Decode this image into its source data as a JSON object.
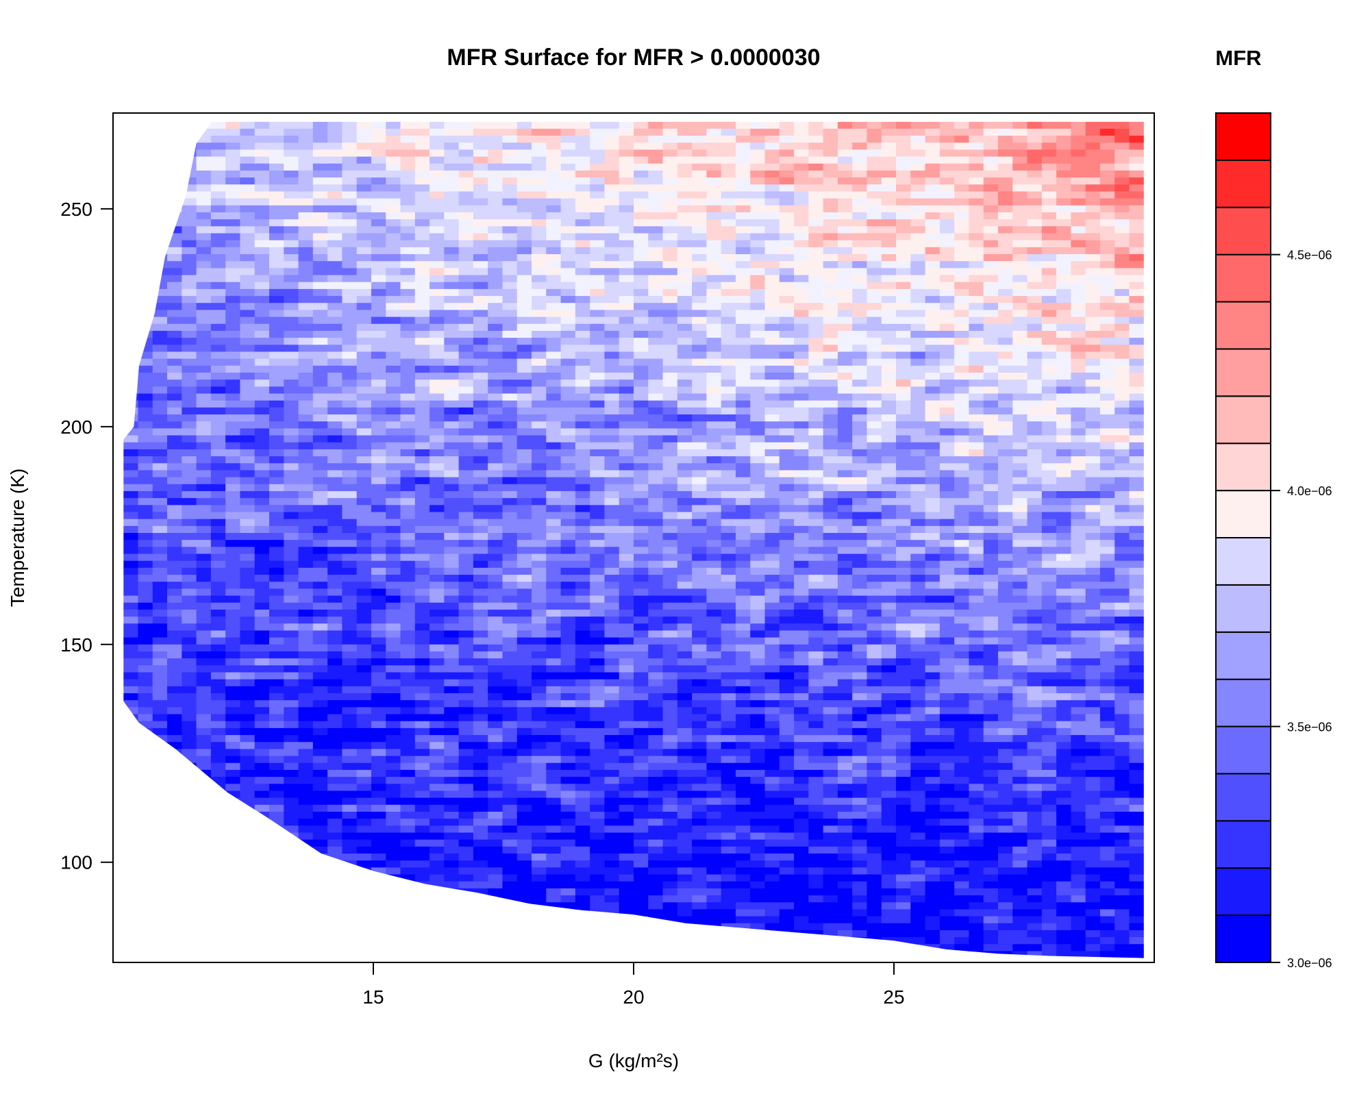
{
  "chart_data": {
    "type": "heatmap",
    "title": "MFR Surface for MFR > 0.0000030",
    "xlabel": "G (kg/m²s)",
    "ylabel": "Temperature (K)",
    "xlim": [
      10,
      30
    ],
    "ylim": [
      77,
      272
    ],
    "x_ticks": [
      15,
      20,
      25
    ],
    "y_ticks": [
      100,
      150,
      200,
      250
    ],
    "x_tick_labels": [
      "15",
      "20",
      "25"
    ],
    "y_tick_labels": [
      "100",
      "150",
      "200",
      "250"
    ],
    "data_extent": {
      "x": [
        10.2,
        29.8
      ],
      "y": [
        78,
        270
      ]
    },
    "lower_boundary": [
      {
        "g": 10.2,
        "t": 137
      },
      {
        "g": 10.5,
        "t": 132
      },
      {
        "g": 11.2,
        "t": 126
      },
      {
        "g": 12.2,
        "t": 116
      },
      {
        "g": 13.0,
        "t": 110
      },
      {
        "g": 14.0,
        "t": 102
      },
      {
        "g": 15.0,
        "t": 98
      },
      {
        "g": 16.0,
        "t": 95
      },
      {
        "g": 17.0,
        "t": 93
      },
      {
        "g": 18.0,
        "t": 90.5
      },
      {
        "g": 19.0,
        "t": 89
      },
      {
        "g": 20.0,
        "t": 88
      },
      {
        "g": 21.0,
        "t": 86
      },
      {
        "g": 22.0,
        "t": 85
      },
      {
        "g": 23.0,
        "t": 84
      },
      {
        "g": 24.0,
        "t": 83
      },
      {
        "g": 25.0,
        "t": 82
      },
      {
        "g": 26.0,
        "t": 80
      },
      {
        "g": 27.0,
        "t": 79
      },
      {
        "g": 28.0,
        "t": 78.5
      },
      {
        "g": 29.8,
        "t": 78
      }
    ],
    "upper_left_boundary": [
      {
        "g": 10.2,
        "t": 197
      },
      {
        "g": 10.4,
        "t": 200
      },
      {
        "g": 10.5,
        "t": 214
      },
      {
        "g": 10.8,
        "t": 226
      },
      {
        "g": 11.0,
        "t": 239
      },
      {
        "g": 11.4,
        "t": 253
      },
      {
        "g": 11.6,
        "t": 265
      },
      {
        "g": 11.9,
        "t": 270
      }
    ],
    "colorbar": {
      "title": "MFR",
      "range": [
        3e-06,
        4.8e-06
      ],
      "levels": 18,
      "colors": [
        "#0000ff",
        "#1a1aff",
        "#3535ff",
        "#5050ff",
        "#6b6bff",
        "#8686ff",
        "#a1a1ff",
        "#bcbcff",
        "#d7d7ff",
        "#f2f2ff",
        "#fff0f0",
        "#ffd5d5",
        "#ffbaba",
        "#ff9f9f",
        "#ff8484",
        "#ff6969",
        "#ff4e4e",
        "#ff2a2a",
        "#ff0000"
      ],
      "tick_values": [
        3e-06,
        3.5e-06,
        4e-06,
        4.5e-06
      ],
      "tick_labels": [
        "3.0e−06",
        "3.5e−06",
        "4.0e−06",
        "4.5e−06"
      ]
    }
  }
}
